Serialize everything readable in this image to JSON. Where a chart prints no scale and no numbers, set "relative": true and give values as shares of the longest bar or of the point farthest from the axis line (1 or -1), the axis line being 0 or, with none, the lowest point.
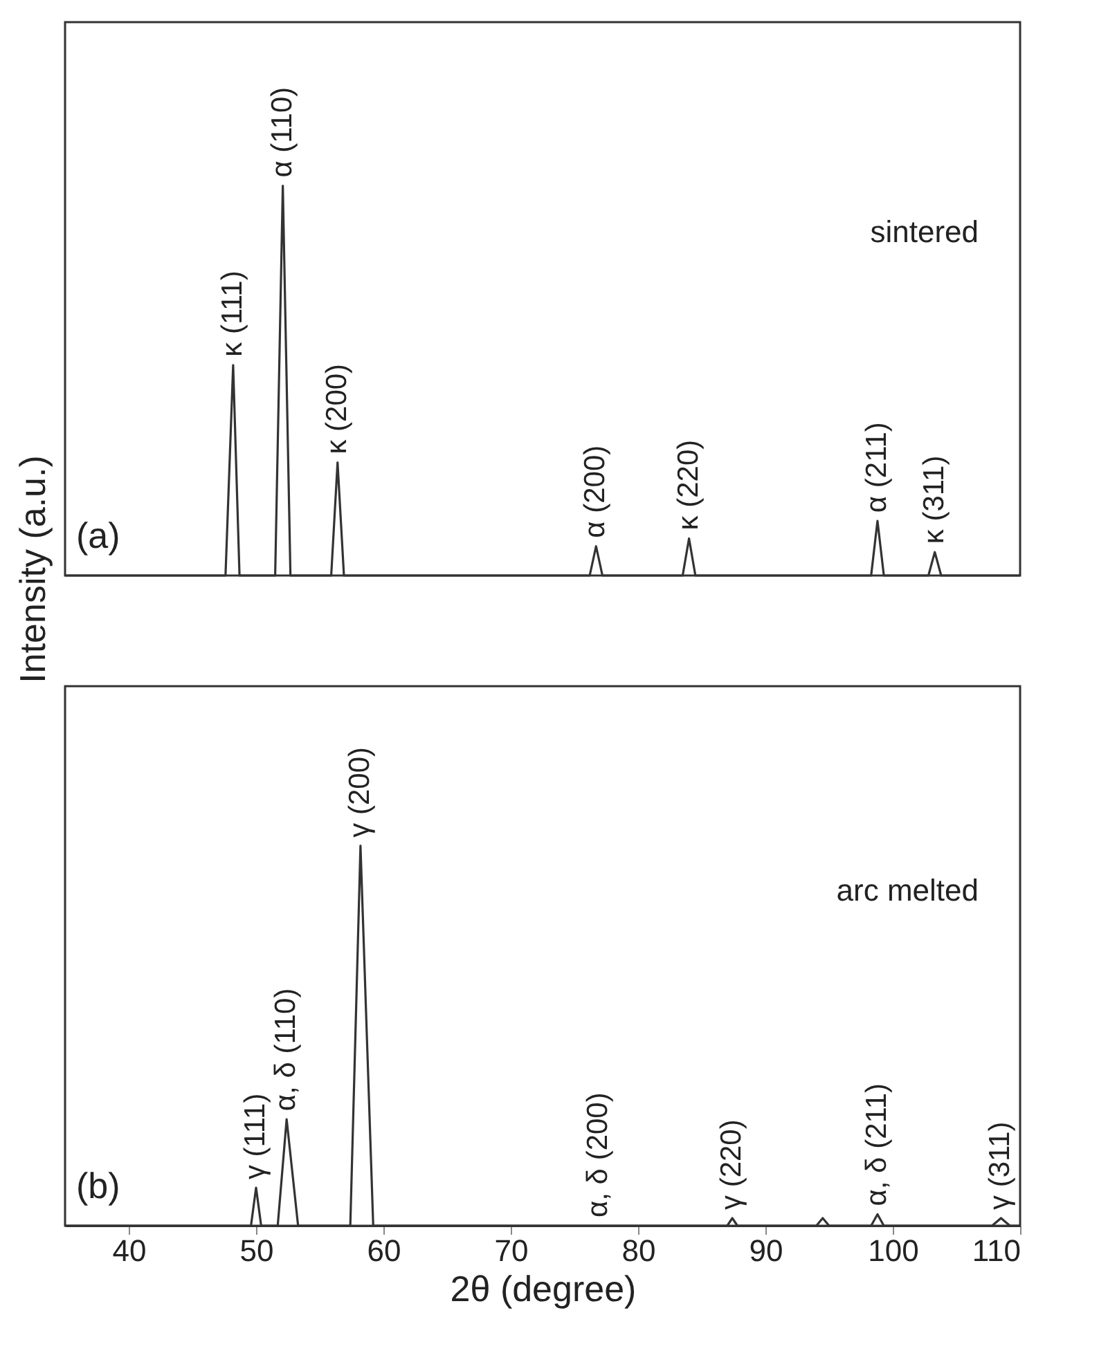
{
  "chart_data": [
    {
      "type": "line",
      "relative": true,
      "ylabel": "Intensity (a.u.)",
      "xlim": [
        35,
        110
      ],
      "tick_labels": false,
      "line_style": "solid",
      "x": [
        35,
        47.6,
        48.2,
        48.7,
        51.5,
        52.1,
        52.7,
        55.9,
        56.4,
        56.9,
        76.2,
        76.7,
        77.2,
        83.5,
        84,
        84.5,
        98.3,
        98.8,
        99.3,
        102.8,
        103.3,
        103.8,
        110
      ],
      "series": [
        {
          "color": "#333333",
          "values": [
            0,
            0,
            0.54,
            0,
            0,
            1,
            0,
            0,
            0.29,
            0,
            0,
            0.075,
            0,
            0,
            0.095,
            0,
            0,
            0.14,
            0,
            0,
            0.06,
            0,
            0
          ]
        }
      ],
      "annotations": [
        "(a)",
        "sintered",
        {
          "text": "κ (111)",
          "x": 48.2,
          "y": 0.54
        },
        {
          "text": "α (110)",
          "x": 52.1,
          "y": 1
        },
        {
          "text": "κ (200)",
          "x": 56.4,
          "y": 0.29
        },
        {
          "text": "α (200)",
          "x": 76.7,
          "y": 0.075
        },
        {
          "text": "κ (220)",
          "x": 84,
          "y": 0.095
        },
        {
          "text": "α (211)",
          "x": 98.8,
          "y": 0.14
        },
        {
          "text": "κ (311)",
          "x": 103.3,
          "y": 0.06
        }
      ]
    },
    {
      "type": "line",
      "relative": true,
      "xlabel": "2θ (degree)",
      "xlim": [
        35,
        110
      ],
      "xticks": [
        40,
        50,
        60,
        70,
        80,
        90,
        100,
        110
      ],
      "tick_labels": "x",
      "line_style": "solid",
      "x": [
        35,
        49.6,
        50,
        50.4,
        51.7,
        52.4,
        53.3,
        57.4,
        58.2,
        59.2,
        87,
        87.4,
        87.8,
        94,
        94.5,
        95,
        98.3,
        98.8,
        99.3,
        107.8,
        108.5,
        109.2,
        110
      ],
      "series": [
        {
          "color": "#333333",
          "values": [
            0,
            0,
            0.1,
            0,
            0,
            0.28,
            0,
            0,
            1,
            0,
            0,
            0.02,
            0,
            0,
            0.02,
            0,
            0,
            0.03,
            0,
            0,
            0.02,
            0,
            0
          ]
        }
      ],
      "annotations": [
        "(b)",
        "arc melted",
        {
          "text": "γ (111)",
          "x": 50,
          "y": 0.1
        },
        {
          "text": "α, δ (110)",
          "x": 52.4,
          "y": 0.28
        },
        {
          "text": "γ (200)",
          "x": 58.2,
          "y": 1
        },
        {
          "text": "α, δ (200)",
          "x": 76.9,
          "y": 0
        },
        {
          "text": "γ (220)",
          "x": 87.4,
          "y": 0.02
        },
        {
          "text": "α, δ (211)",
          "x": 98.8,
          "y": 0.03
        },
        {
          "text": "γ (311)",
          "x": 108.5,
          "y": 0.02
        }
      ]
    }
  ]
}
